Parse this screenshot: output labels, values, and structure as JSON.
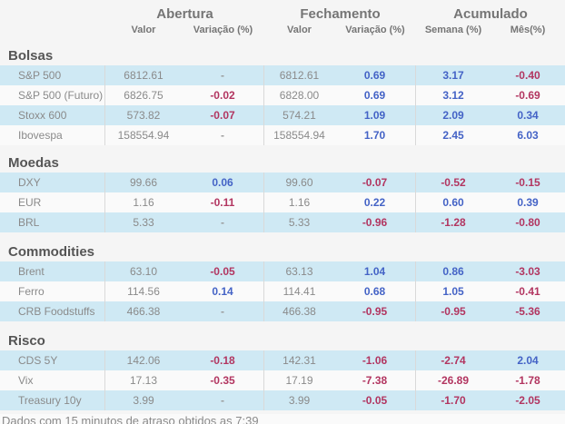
{
  "header": {
    "groups": [
      {
        "label": "Abertura",
        "sub": [
          "Valor",
          "Variação (%)"
        ]
      },
      {
        "label": "Fechamento",
        "sub": [
          "Valor",
          "Variação (%)"
        ]
      },
      {
        "label": "Acumulado",
        "sub": [
          "Semana (%)",
          "Mês(%)"
        ]
      }
    ]
  },
  "sections": [
    {
      "title": "Bolsas",
      "rows": [
        {
          "name": "S&P 500",
          "values": [
            "6812.61",
            "-",
            "6812.61",
            "0.69",
            "3.17",
            "-0.40"
          ]
        },
        {
          "name": "S&P 500 (Futuro)",
          "values": [
            "6826.75",
            "-0.02",
            "6828.00",
            "0.69",
            "3.12",
            "-0.69"
          ]
        },
        {
          "name": "Stoxx 600",
          "values": [
            "573.82",
            "-0.07",
            "574.21",
            "1.09",
            "2.09",
            "0.34"
          ]
        },
        {
          "name": "Ibovespa",
          "values": [
            "158554.94",
            "-",
            "158554.94",
            "1.70",
            "2.45",
            "6.03"
          ]
        }
      ]
    },
    {
      "title": "Moedas",
      "rows": [
        {
          "name": "DXY",
          "values": [
            "99.66",
            "0.06",
            "99.60",
            "-0.07",
            "-0.52",
            "-0.15"
          ]
        },
        {
          "name": "EUR",
          "values": [
            "1.16",
            "-0.11",
            "1.16",
            "0.22",
            "0.60",
            "0.39"
          ]
        },
        {
          "name": "BRL",
          "values": [
            "5.33",
            "-",
            "5.33",
            "-0.96",
            "-1.28",
            "-0.80"
          ]
        }
      ]
    },
    {
      "title": "Commodities",
      "rows": [
        {
          "name": "Brent",
          "values": [
            "63.10",
            "-0.05",
            "63.13",
            "1.04",
            "0.86",
            "-3.03"
          ]
        },
        {
          "name": "Ferro",
          "values": [
            "114.56",
            "0.14",
            "114.41",
            "0.68",
            "1.05",
            "-0.41"
          ]
        },
        {
          "name": "CRB Foodstuffs",
          "values": [
            "466.38",
            "-",
            "466.38",
            "-0.95",
            "-0.95",
            "-5.36"
          ]
        }
      ]
    },
    {
      "title": "Risco",
      "rows": [
        {
          "name": "CDS 5Y",
          "values": [
            "142.06",
            "-0.18",
            "142.31",
            "-1.06",
            "-2.74",
            "2.04"
          ]
        },
        {
          "name": "Vix",
          "values": [
            "17.13",
            "-0.35",
            "17.19",
            "-7.38",
            "-26.89",
            "-1.78"
          ]
        },
        {
          "name": "Treasury 10y",
          "values": [
            "3.99",
            "-",
            "3.99",
            "-0.05",
            "-1.70",
            "-2.05"
          ]
        }
      ]
    }
  ],
  "footer": {
    "text": "Dados com 15 minutos de atraso obtidos as 7:39"
  },
  "colors": {
    "positive": "#4463c6",
    "negative": "#b23560",
    "neutral_dash": "#9a9a9a",
    "row_highlight": "#cfe9f4",
    "row_alternate": "#fafafa"
  }
}
